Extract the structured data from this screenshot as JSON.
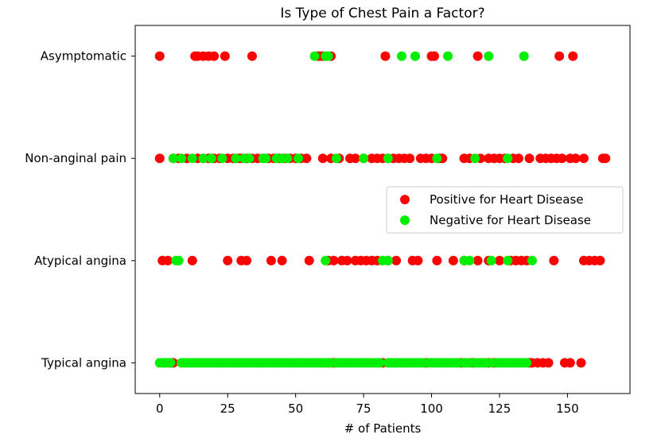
{
  "chart_data": {
    "type": "scatter",
    "title": "Is Type of Chest Pain a Factor?",
    "xlabel": "# of Patients",
    "ylabel": "",
    "xlim": [
      -9,
      173
    ],
    "ylim": [
      -0.3,
      3.3
    ],
    "xticks": [
      0,
      25,
      50,
      75,
      100,
      125,
      150
    ],
    "yticks": [
      0,
      1,
      2,
      3
    ],
    "yticklabels": [
      "Typical angina",
      "Atypical angina",
      "Non-anginal pain",
      "Asymptomatic"
    ],
    "legend_position": "center-right",
    "series": [
      {
        "name": "Positive for Heart Disease",
        "color": "#ff0000",
        "points": {
          "3": [
            0,
            13,
            14,
            16,
            18,
            20,
            24,
            34,
            58,
            59,
            60,
            63,
            83,
            100,
            101,
            117,
            147,
            152
          ],
          "2": [
            0,
            5,
            7,
            10,
            14,
            16,
            18,
            20,
            22,
            25,
            27,
            29,
            30,
            32,
            34,
            36,
            38,
            40,
            42,
            44,
            46,
            48,
            50,
            52,
            54,
            60,
            63,
            66,
            70,
            72,
            75,
            78,
            80,
            82,
            84,
            86,
            88,
            90,
            92,
            96,
            98,
            100,
            103,
            104,
            112,
            114,
            118,
            121,
            123,
            125,
            127,
            130,
            132,
            136,
            140,
            142,
            144,
            146,
            148,
            151,
            153,
            156,
            163,
            164
          ],
          "1": [
            1,
            3,
            12,
            25,
            30,
            32,
            41,
            45,
            55,
            62,
            64,
            67,
            69,
            72,
            74,
            76,
            78,
            80,
            84,
            87,
            93,
            95,
            102,
            108,
            112,
            117,
            121,
            125,
            129,
            131,
            133,
            135,
            145,
            156,
            158,
            160,
            162
          ],
          "0": [
            4,
            5,
            62,
            64,
            82,
            98,
            111,
            115,
            121,
            123,
            136,
            137,
            139,
            141,
            143,
            149,
            151,
            155
          ]
        }
      },
      {
        "name": "Negative for Heart Disease",
        "color": "#00ee00",
        "points": {
          "3": [
            57,
            61,
            62,
            89,
            94,
            106,
            121,
            134
          ],
          "2": [
            5,
            8,
            12,
            16,
            19,
            23,
            28,
            31,
            33,
            38,
            39,
            43,
            45,
            47,
            51,
            65,
            75,
            84,
            102,
            116,
            128
          ],
          "1": [
            6,
            7,
            61,
            82,
            84,
            112,
            114,
            122,
            128,
            137
          ],
          "0": [
            0,
            1,
            2,
            3,
            4,
            8,
            9,
            10,
            11,
            12,
            13,
            14,
            15,
            16,
            17,
            18,
            19,
            20,
            21,
            22,
            23,
            24,
            25,
            26,
            27,
            28,
            29,
            30,
            31,
            32,
            33,
            34,
            35,
            36,
            37,
            38,
            39,
            40,
            41,
            42,
            43,
            44,
            45,
            46,
            47,
            48,
            49,
            50,
            51,
            52,
            53,
            54,
            55,
            56,
            57,
            58,
            59,
            60,
            61,
            62,
            63,
            65,
            66,
            67,
            68,
            69,
            70,
            71,
            72,
            73,
            74,
            75,
            76,
            77,
            78,
            79,
            80,
            81,
            84,
            85,
            86,
            87,
            88,
            89,
            90,
            91,
            92,
            93,
            94,
            95,
            96,
            97,
            99,
            100,
            101,
            102,
            103,
            104,
            105,
            106,
            107,
            108,
            109,
            110,
            112,
            113,
            114,
            116,
            117,
            118,
            119,
            120,
            122,
            124,
            125,
            126,
            127,
            128,
            129,
            130,
            131,
            132,
            133,
            134,
            135
          ]
        }
      }
    ]
  }
}
